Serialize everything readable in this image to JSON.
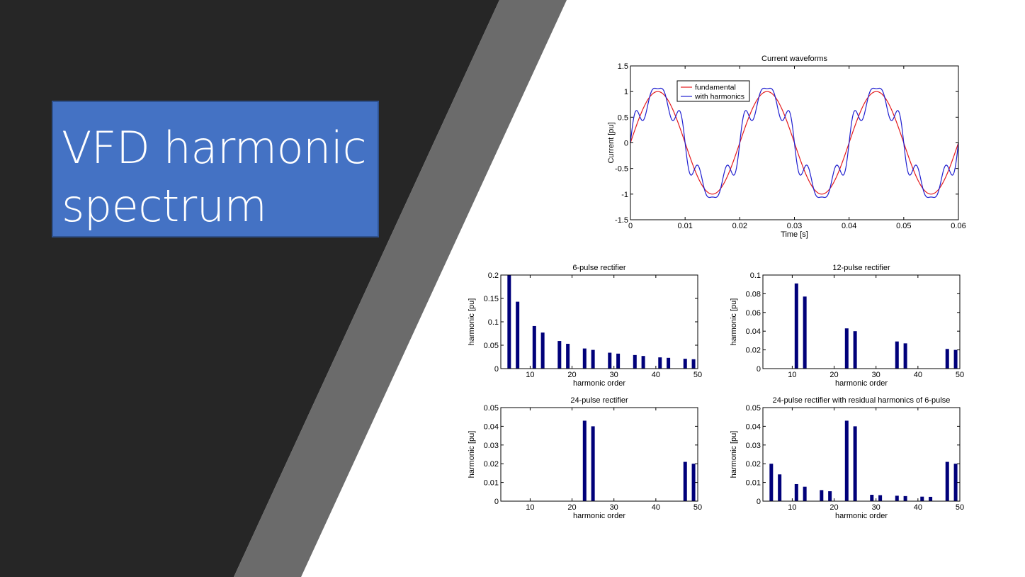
{
  "slide": {
    "title_line1": "VFD harmonic",
    "title_line2": "spectrum",
    "colors": {
      "dark_bg": "#262626",
      "stripe": "#6b6b6b",
      "title_box": "#4472c4",
      "bar": "#00007a",
      "line_fundamental": "#e41a1c",
      "line_harmonics": "#1f1fd0"
    }
  },
  "chart_data": [
    {
      "id": "waveforms",
      "type": "line",
      "title": "Current waveforms",
      "xlabel": "Time [s]",
      "ylabel": "Current [pu]",
      "xlim": [
        0,
        0.06
      ],
      "ylim": [
        -1.5,
        1.5
      ],
      "xticks": [
        0,
        0.01,
        0.02,
        0.03,
        0.04,
        0.05,
        0.06
      ],
      "yticks": [
        -1.5,
        -1,
        -0.5,
        0,
        0.5,
        1,
        1.5
      ],
      "xtick_labels": [
        "0",
        "0.01",
        "0.02",
        "0.03",
        "0.04",
        "0.05",
        "0.06"
      ],
      "ytick_labels": [
        "-1.5",
        "-1",
        "-0.5",
        "0",
        "0.5",
        "1",
        "1.5"
      ],
      "frequency_hz": 50,
      "legend_position": "top-left",
      "series": [
        {
          "name": "fundamental",
          "color": "#e41a1c",
          "components": [
            {
              "order": 1,
              "amplitude": 1.0
            }
          ]
        },
        {
          "name": "with harmonics",
          "color": "#1f1fd0",
          "components": [
            {
              "order": 1,
              "amplitude": 1.0
            },
            {
              "order": 5,
              "amplitude": 0.2
            },
            {
              "order": 7,
              "amplitude": 0.143
            }
          ]
        }
      ]
    },
    {
      "id": "pulse6",
      "type": "bar",
      "title": "6-pulse rectifier",
      "xlabel": "harmonic order",
      "ylabel": "harmonic [pu]",
      "xlim": [
        3,
        50
      ],
      "ylim": [
        0,
        0.2
      ],
      "xticks": [
        10,
        20,
        30,
        40,
        50
      ],
      "yticks": [
        0,
        0.05,
        0.1,
        0.15,
        0.2
      ],
      "xtick_labels": [
        "10",
        "20",
        "30",
        "40",
        "50"
      ],
      "ytick_labels": [
        "0",
        "0.05",
        "0.1",
        "0.15",
        "0.2"
      ],
      "x": [
        5,
        7,
        11,
        13,
        17,
        19,
        23,
        25,
        29,
        31,
        35,
        37,
        41,
        43,
        47,
        49
      ],
      "values": [
        0.2,
        0.143,
        0.091,
        0.077,
        0.059,
        0.053,
        0.043,
        0.04,
        0.034,
        0.032,
        0.029,
        0.027,
        0.024,
        0.023,
        0.021,
        0.02
      ]
    },
    {
      "id": "pulse12",
      "type": "bar",
      "title": "12-pulse rectifier",
      "xlabel": "harmonic order",
      "ylabel": "harmonic [pu]",
      "xlim": [
        3,
        50
      ],
      "ylim": [
        0,
        0.1
      ],
      "xticks": [
        10,
        20,
        30,
        40,
        50
      ],
      "yticks": [
        0,
        0.02,
        0.04,
        0.06,
        0.08,
        0.1
      ],
      "xtick_labels": [
        "10",
        "20",
        "30",
        "40",
        "50"
      ],
      "ytick_labels": [
        "0",
        "0.02",
        "0.04",
        "0.06",
        "0.08",
        "0.1"
      ],
      "x": [
        11,
        13,
        23,
        25,
        35,
        37,
        47,
        49
      ],
      "values": [
        0.091,
        0.077,
        0.043,
        0.04,
        0.029,
        0.027,
        0.021,
        0.02
      ]
    },
    {
      "id": "pulse24",
      "type": "bar",
      "title": "24-pulse rectifier",
      "xlabel": "harmonic order",
      "ylabel": "harmonic [pu]",
      "xlim": [
        3,
        50
      ],
      "ylim": [
        0,
        0.05
      ],
      "xticks": [
        10,
        20,
        30,
        40,
        50
      ],
      "yticks": [
        0,
        0.01,
        0.02,
        0.03,
        0.04,
        0.05
      ],
      "xtick_labels": [
        "10",
        "20",
        "30",
        "40",
        "50"
      ],
      "ytick_labels": [
        "0",
        "0.01",
        "0.02",
        "0.03",
        "0.04",
        "0.05"
      ],
      "x": [
        23,
        25,
        47,
        49
      ],
      "values": [
        0.043,
        0.04,
        0.021,
        0.02
      ]
    },
    {
      "id": "pulse24res",
      "type": "bar",
      "title": "24-pulse rectifier with residual harmonics of 6-pulse",
      "xlabel": "harmonic order",
      "ylabel": "harmonic [pu]",
      "xlim": [
        3,
        50
      ],
      "ylim": [
        0,
        0.05
      ],
      "xticks": [
        10,
        20,
        30,
        40,
        50
      ],
      "yticks": [
        0,
        0.01,
        0.02,
        0.03,
        0.04,
        0.05
      ],
      "xtick_labels": [
        "10",
        "20",
        "30",
        "40",
        "50"
      ],
      "ytick_labels": [
        "0",
        "0.01",
        "0.02",
        "0.03",
        "0.04",
        "0.05"
      ],
      "x": [
        5,
        7,
        11,
        13,
        17,
        19,
        23,
        25,
        29,
        31,
        35,
        37,
        41,
        43,
        47,
        49
      ],
      "values": [
        0.02,
        0.0143,
        0.0091,
        0.0077,
        0.0059,
        0.0053,
        0.043,
        0.04,
        0.0034,
        0.0032,
        0.0029,
        0.0027,
        0.0024,
        0.0023,
        0.021,
        0.02
      ]
    }
  ]
}
